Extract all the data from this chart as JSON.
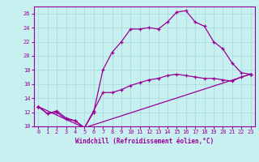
{
  "xlabel": "Windchill (Refroidissement éolien,°C)",
  "ylabel": "",
  "bg_color": "#c8f0f0",
  "line_color": "#990099",
  "grid_color": "#aadddd",
  "xmin": 0,
  "xmax": 23,
  "ymin": 10,
  "ymax": 27,
  "yticks": [
    10,
    12,
    14,
    16,
    18,
    20,
    22,
    24,
    26
  ],
  "xticks": [
    0,
    1,
    2,
    3,
    4,
    5,
    6,
    7,
    8,
    9,
    10,
    11,
    12,
    13,
    14,
    15,
    16,
    17,
    18,
    19,
    20,
    21,
    22,
    23
  ],
  "line1_x": [
    0,
    1,
    2,
    3,
    4,
    5,
    6,
    7,
    8,
    9,
    10,
    11,
    12,
    13,
    14,
    15,
    16,
    17,
    18,
    19,
    20,
    21,
    22,
    23
  ],
  "line1_y": [
    12.8,
    11.8,
    12.0,
    11.0,
    10.8,
    9.8,
    12.0,
    18.0,
    20.5,
    22.0,
    23.8,
    23.8,
    24.0,
    23.8,
    24.8,
    26.2,
    26.4,
    24.8,
    24.2,
    22.0,
    21.0,
    19.0,
    17.6,
    17.4
  ],
  "line2_x": [
    0,
    1,
    2,
    3,
    4,
    5,
    6,
    7,
    8,
    9,
    10,
    11,
    12,
    13,
    14,
    15,
    16,
    17,
    18,
    19,
    20,
    21,
    22,
    23
  ],
  "line2_y": [
    12.8,
    11.8,
    12.2,
    11.2,
    10.8,
    9.8,
    12.2,
    14.8,
    14.8,
    15.2,
    15.8,
    16.2,
    16.6,
    16.8,
    17.2,
    17.4,
    17.2,
    17.0,
    16.8,
    16.8,
    16.6,
    16.4,
    17.0,
    17.4
  ],
  "line3_x": [
    0,
    5,
    23
  ],
  "line3_y": [
    12.8,
    9.8,
    17.4
  ]
}
